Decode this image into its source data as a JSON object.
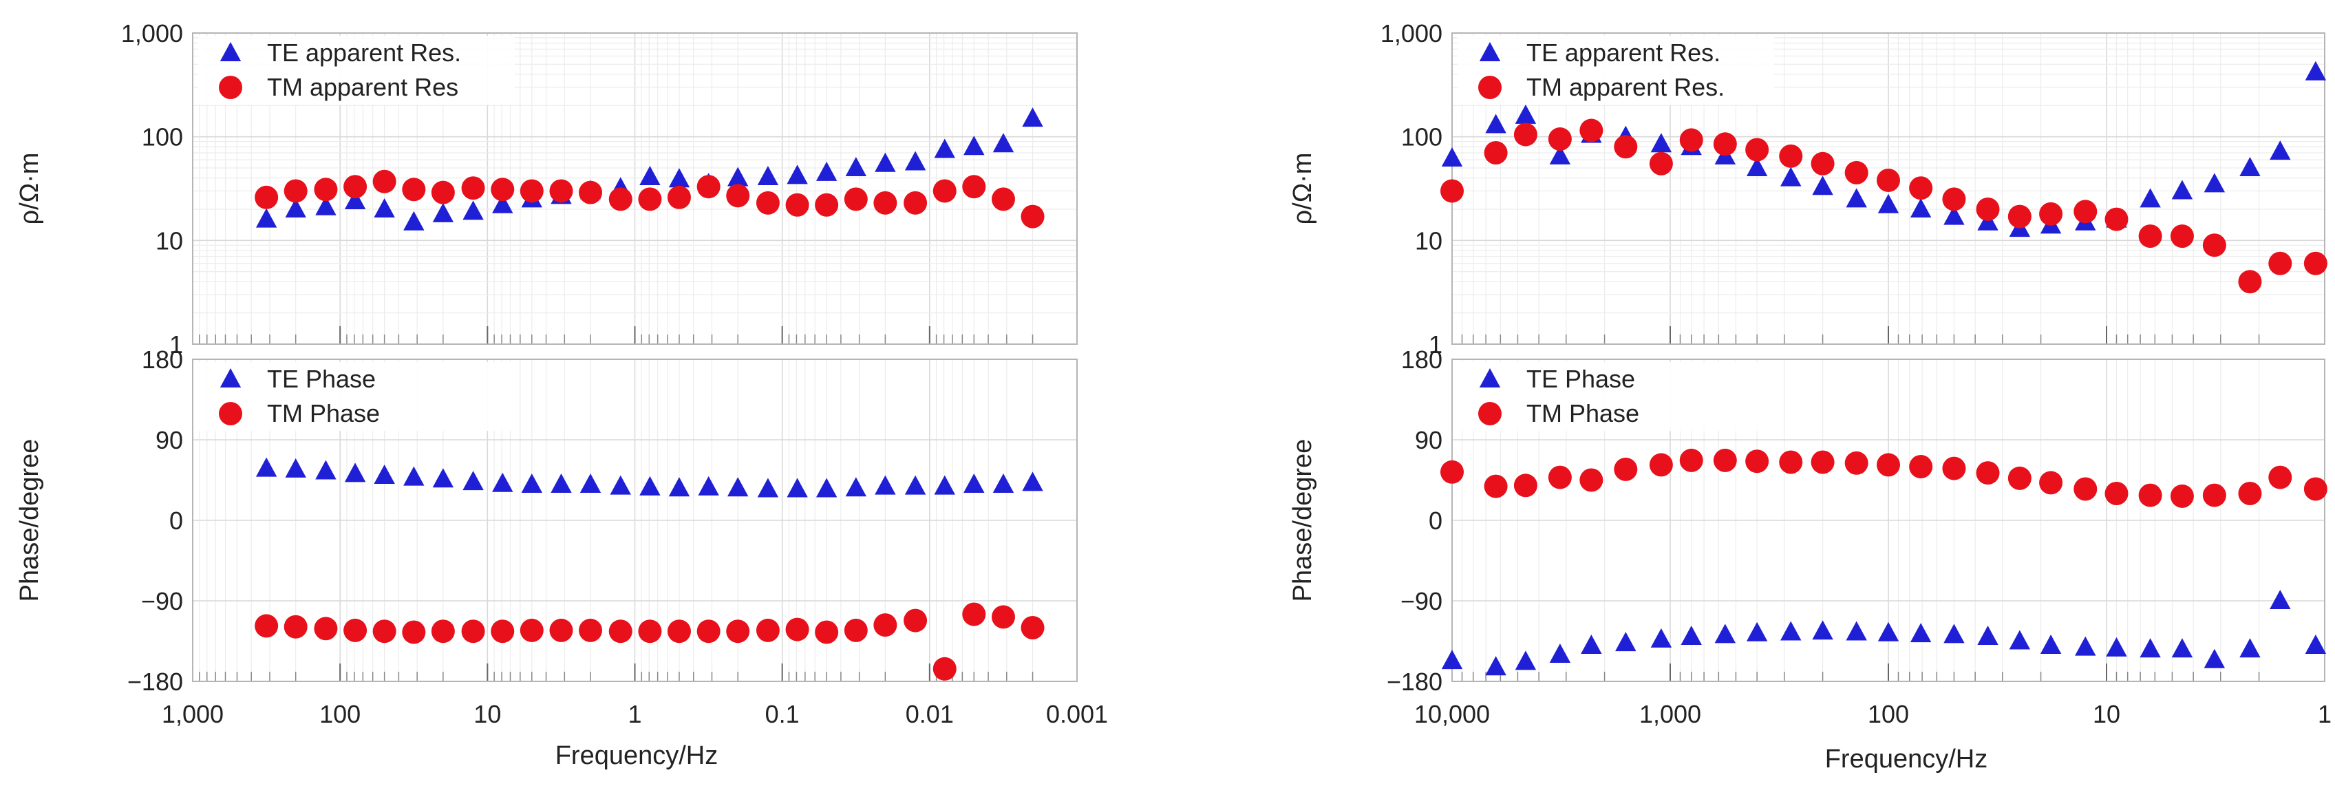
{
  "chart_data": [
    {
      "id": "left-resistivity",
      "type": "scatter",
      "ylabel": "ρ/Ω·m",
      "xlabel": "",
      "xscale": "log",
      "xlim": [
        1000,
        0.001
      ],
      "x_reversed": true,
      "yscale": "log",
      "ylim": [
        1,
        1000
      ],
      "yticks": [
        1,
        10,
        100,
        1000
      ],
      "ytick_labels": [
        "1",
        "10",
        "100",
        "1,000"
      ],
      "xticks": [],
      "xtick_labels": [],
      "legend": "top-left",
      "x": [
        316,
        200,
        125,
        79,
        50,
        31.6,
        20,
        12.5,
        7.9,
        5,
        3.16,
        2,
        1.25,
        0.79,
        0.5,
        0.316,
        0.2,
        0.125,
        0.079,
        0.05,
        0.0316,
        0.02,
        0.0125,
        0.0079,
        0.005,
        0.00316,
        0.002
      ],
      "series": [
        {
          "name": "TE apparent Res.",
          "marker": "triangle",
          "color": "#1f1fd6",
          "values": [
            16,
            20,
            21,
            24,
            20,
            15,
            18,
            19,
            22,
            25,
            27,
            30,
            32,
            41,
            39,
            35,
            40,
            41,
            42,
            45,
            50,
            55,
            57,
            75,
            80,
            85,
            150
          ]
        },
        {
          "name": "TM apparent Res",
          "marker": "circle",
          "color": "#e8101a",
          "values": [
            26,
            30,
            31,
            33,
            37,
            31,
            29,
            32,
            31,
            30,
            30,
            29,
            25,
            25,
            26,
            33,
            27,
            23,
            22,
            22,
            25,
            23,
            23,
            30,
            33,
            25,
            17
          ]
        }
      ]
    },
    {
      "id": "left-phase",
      "type": "scatter",
      "ylabel": "Phase/degree",
      "xlabel": "Frequency/Hz",
      "xscale": "log",
      "xlim": [
        1000,
        0.001
      ],
      "x_reversed": true,
      "ylim": [
        -180,
        180
      ],
      "yticks": [
        -180,
        -90,
        0,
        90,
        180
      ],
      "ytick_labels": [
        "−180",
        "−90",
        "0",
        "90",
        "180"
      ],
      "xticks": [
        1000,
        100,
        10,
        1,
        0.1,
        0.01,
        0.001
      ],
      "xtick_labels": [
        "1,000",
        "100",
        "10",
        "1",
        "0.1",
        "0.01",
        "0.001"
      ],
      "legend": "top-left",
      "x": [
        316,
        200,
        125,
        79,
        50,
        31.6,
        20,
        12.5,
        7.9,
        5,
        3.16,
        2,
        1.25,
        0.79,
        0.5,
        0.316,
        0.2,
        0.125,
        0.079,
        0.05,
        0.0316,
        0.02,
        0.0125,
        0.0079,
        0.005,
        0.00316,
        0.002
      ],
      "series": [
        {
          "name": "TE Phase",
          "marker": "triangle",
          "color": "#1f1fd6",
          "values": [
            58,
            57,
            55,
            52,
            50,
            48,
            46,
            43,
            41,
            40,
            40,
            40,
            38,
            37,
            36,
            37,
            36,
            35,
            35,
            35,
            36,
            38,
            38,
            38,
            40,
            40,
            42
          ]
        },
        {
          "name": "TM Phase",
          "marker": "circle",
          "color": "#e8101a",
          "values": [
            -118,
            -119,
            -121,
            -123,
            -124,
            -125,
            -124,
            -124,
            -124,
            -123,
            -123,
            -123,
            -124,
            -124,
            -124,
            -124,
            -124,
            -123,
            -122,
            -125,
            -123,
            -117,
            -112,
            -166,
            -105,
            -108,
            -120
          ]
        }
      ]
    },
    {
      "id": "right-resistivity",
      "type": "scatter",
      "ylabel": "ρ/Ω·m",
      "xlabel": "",
      "xscale": "log",
      "xlim": [
        10000,
        1
      ],
      "x_reversed": true,
      "yscale": "log",
      "ylim": [
        1,
        1000
      ],
      "yticks": [
        1,
        10,
        100,
        1000
      ],
      "ytick_labels": [
        "1",
        "10",
        "100",
        "1,000"
      ],
      "xticks": [],
      "xtick_labels": [],
      "legend": "top-left",
      "x": [
        10000,
        6300,
        4600,
        3200,
        2300,
        1600,
        1100,
        800,
        560,
        400,
        280,
        200,
        140,
        100,
        71,
        50,
        35,
        25,
        18,
        12.5,
        9,
        6.3,
        4.5,
        3.2,
        2.2,
        1.6,
        1.1
      ],
      "series": [
        {
          "name": "TE apparent Res.",
          "marker": "triangle",
          "color": "#1f1fd6",
          "values": [
            62,
            130,
            160,
            65,
            105,
            100,
            85,
            80,
            65,
            50,
            40,
            33,
            25,
            22,
            20,
            17,
            15,
            13,
            14,
            15,
            16,
            25,
            30,
            35,
            50,
            72,
            420
          ]
        },
        {
          "name": "TM apparent Res.",
          "marker": "circle",
          "color": "#e8101a",
          "values": [
            30,
            70,
            105,
            95,
            115,
            80,
            55,
            93,
            85,
            75,
            65,
            55,
            45,
            38,
            32,
            25,
            20,
            17,
            18,
            19,
            16,
            11,
            11,
            9,
            4,
            6,
            6
          ]
        }
      ]
    },
    {
      "id": "right-phase",
      "type": "scatter",
      "ylabel": "Phase/degree",
      "xlabel": "Frequency/Hz",
      "xscale": "log",
      "xlim": [
        10000,
        1
      ],
      "x_reversed": true,
      "ylim": [
        -180,
        180
      ],
      "yticks": [
        -180,
        -90,
        0,
        90,
        180
      ],
      "ytick_labels": [
        "−180",
        "−90",
        "0",
        "90",
        "180"
      ],
      "xticks": [
        10000,
        1000,
        100,
        10,
        1
      ],
      "xtick_labels": [
        "10,000",
        "1,000",
        "100",
        "10",
        "1"
      ],
      "legend": "top-left",
      "x": [
        10000,
        6300,
        4600,
        3200,
        2300,
        1600,
        1100,
        800,
        560,
        400,
        280,
        200,
        140,
        100,
        71,
        50,
        35,
        25,
        18,
        12.5,
        9,
        6.3,
        4.5,
        3.2,
        2.2,
        1.6,
        1.1
      ],
      "series": [
        {
          "name": "TE Phase",
          "marker": "triangle",
          "color": "#1f1fd6",
          "values": [
            -157,
            -164,
            -158,
            -150,
            -140,
            -137,
            -133,
            -130,
            -128,
            -126,
            -125,
            -124,
            -125,
            -126,
            -127,
            -128,
            -130,
            -135,
            -140,
            -142,
            -143,
            -144,
            -144,
            -156,
            -144,
            -90,
            -140
          ]
        },
        {
          "name": "TM Phase",
          "marker": "circle",
          "color": "#e8101a",
          "values": [
            54,
            38,
            39,
            48,
            45,
            57,
            62,
            67,
            67,
            66,
            65,
            65,
            64,
            62,
            60,
            58,
            53,
            47,
            42,
            35,
            30,
            28,
            27,
            28,
            30,
            48,
            35
          ]
        }
      ]
    }
  ]
}
